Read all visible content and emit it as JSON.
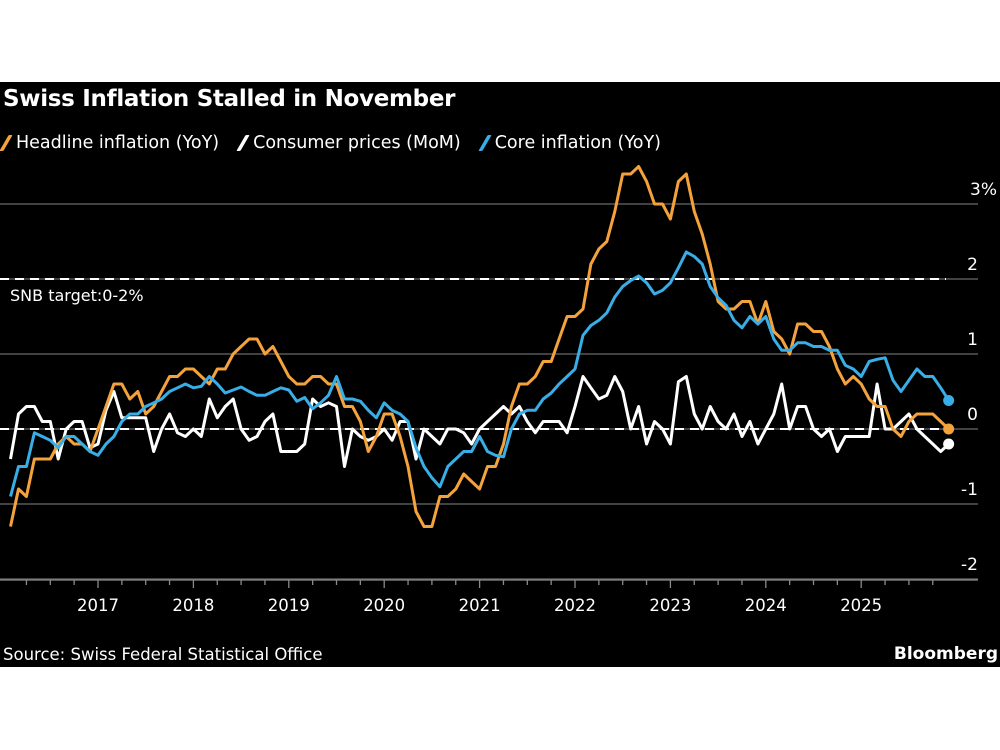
{
  "chart_data": {
    "type": "line",
    "title": "Swiss Inflation Stalled in November",
    "source": "Source: Swiss Federal Statistical Office",
    "brand": "Bloomberg",
    "x_start": "2016-01",
    "x_end": "2025-11",
    "x_frequency": "monthly",
    "x_tick_labels": [
      "2017",
      "2018",
      "2019",
      "2020",
      "2021",
      "2022",
      "2023",
      "2024",
      "2025"
    ],
    "y_tick_labels": [
      "3%",
      "2",
      "1",
      "0",
      "-1",
      "-2"
    ],
    "y_ticks": [
      3,
      2,
      1,
      0,
      -1,
      -2
    ],
    "ylim": [
      -2,
      3.4
    ],
    "y_axis_side": "right",
    "grid": true,
    "legend_position": "top-left",
    "reference_lines": [
      {
        "value": 2,
        "label": "SNB target:0-2%",
        "style": "dashed",
        "color": "#ffffff"
      },
      {
        "value": 0,
        "label": "",
        "style": "dashed",
        "color": "#ffffff"
      }
    ],
    "series": [
      {
        "name": "Headline inflation (YoY)",
        "color": "#f4a23c",
        "values": [
          -1.3,
          -0.8,
          -0.9,
          -0.4,
          -0.4,
          -0.4,
          -0.2,
          -0.1,
          -0.2,
          -0.2,
          -0.3,
          0.0,
          0.3,
          0.6,
          0.6,
          0.4,
          0.5,
          0.2,
          0.3,
          0.5,
          0.7,
          0.7,
          0.8,
          0.8,
          0.7,
          0.6,
          0.8,
          0.8,
          1.0,
          1.1,
          1.2,
          1.2,
          1.0,
          1.1,
          0.9,
          0.7,
          0.6,
          0.6,
          0.7,
          0.7,
          0.6,
          0.6,
          0.3,
          0.3,
          0.1,
          -0.3,
          -0.1,
          0.2,
          0.2,
          -0.1,
          -0.5,
          -1.1,
          -1.3,
          -1.3,
          -0.9,
          -0.9,
          -0.8,
          -0.6,
          -0.7,
          -0.8,
          -0.5,
          -0.5,
          -0.2,
          0.3,
          0.6,
          0.6,
          0.7,
          0.9,
          0.9,
          1.2,
          1.5,
          1.5,
          1.6,
          2.2,
          2.4,
          2.5,
          2.9,
          3.4,
          3.4,
          3.5,
          3.3,
          3.0,
          3.0,
          2.8,
          3.3,
          3.4,
          2.9,
          2.6,
          2.2,
          1.7,
          1.6,
          1.6,
          1.7,
          1.7,
          1.4,
          1.7,
          1.3,
          1.2,
          1.0,
          1.4,
          1.4,
          1.3,
          1.3,
          1.1,
          0.8,
          0.6,
          0.7,
          0.6,
          0.4,
          0.3,
          0.3,
          0.0,
          -0.1,
          0.1,
          0.2,
          0.2,
          0.2,
          0.1,
          0.0
        ]
      },
      {
        "name": "Consumer prices (MoM)",
        "color": "#ffffff",
        "values": [
          -0.4,
          0.2,
          0.3,
          0.3,
          0.1,
          0.1,
          -0.4,
          0.0,
          0.1,
          0.1,
          -0.25,
          -0.2,
          0.25,
          0.5,
          0.15,
          0.15,
          0.15,
          0.15,
          -0.3,
          0.0,
          0.2,
          -0.05,
          -0.1,
          0.0,
          -0.1,
          0.4,
          0.15,
          0.3,
          0.4,
          0.0,
          -0.15,
          -0.1,
          0.1,
          0.2,
          -0.3,
          -0.3,
          -0.3,
          -0.2,
          0.4,
          0.3,
          0.35,
          0.3,
          -0.5,
          0.0,
          -0.1,
          -0.15,
          -0.1,
          0.0,
          -0.15,
          0.1,
          0.1,
          -0.4,
          0.0,
          -0.1,
          -0.2,
          0.0,
          0.0,
          -0.05,
          -0.2,
          0.0,
          0.1,
          0.2,
          0.3,
          0.2,
          0.3,
          0.1,
          -0.05,
          0.1,
          0.1,
          0.1,
          -0.05,
          0.3,
          0.7,
          0.55,
          0.4,
          0.45,
          0.7,
          0.5,
          0.0,
          0.3,
          -0.2,
          0.1,
          0.0,
          -0.2,
          0.63,
          0.7,
          0.2,
          0.0,
          0.3,
          0.1,
          0.0,
          0.2,
          -0.1,
          0.1,
          -0.2,
          0.0,
          0.2,
          0.6,
          0.0,
          0.3,
          0.3,
          0.0,
          -0.1,
          0.0,
          -0.3,
          -0.1,
          -0.1,
          -0.1,
          -0.1,
          0.6,
          0.0,
          0.0,
          0.1,
          0.2,
          0.0,
          -0.1,
          -0.2,
          -0.3,
          -0.2
        ]
      },
      {
        "name": "Core inflation (YoY)",
        "color": "#39aee6",
        "values": [
          -0.9,
          -0.5,
          -0.5,
          -0.05,
          -0.1,
          -0.15,
          -0.25,
          -0.1,
          -0.1,
          -0.2,
          -0.3,
          -0.35,
          -0.2,
          -0.1,
          0.1,
          0.2,
          0.2,
          0.3,
          0.35,
          0.4,
          0.5,
          0.55,
          0.6,
          0.55,
          0.57,
          0.7,
          0.6,
          0.48,
          0.52,
          0.56,
          0.5,
          0.45,
          0.45,
          0.5,
          0.55,
          0.52,
          0.37,
          0.42,
          0.27,
          0.35,
          0.45,
          0.7,
          0.4,
          0.4,
          0.37,
          0.25,
          0.15,
          0.35,
          0.25,
          0.2,
          0.1,
          -0.25,
          -0.5,
          -0.65,
          -0.77,
          -0.5,
          -0.4,
          -0.3,
          -0.3,
          -0.1,
          -0.3,
          -0.35,
          -0.37,
          0.0,
          0.2,
          0.25,
          0.25,
          0.4,
          0.48,
          0.6,
          0.7,
          0.8,
          1.25,
          1.38,
          1.45,
          1.55,
          1.76,
          1.9,
          1.98,
          2.04,
          1.95,
          1.8,
          1.85,
          1.95,
          2.15,
          2.36,
          2.3,
          2.2,
          1.9,
          1.75,
          1.65,
          1.45,
          1.35,
          1.5,
          1.4,
          1.5,
          1.2,
          1.05,
          1.05,
          1.15,
          1.15,
          1.1,
          1.1,
          1.05,
          1.05,
          0.85,
          0.8,
          0.7,
          0.9,
          0.93,
          0.95,
          0.65,
          0.5,
          0.65,
          0.8,
          0.7,
          0.7,
          0.55,
          0.38
        ]
      }
    ]
  }
}
